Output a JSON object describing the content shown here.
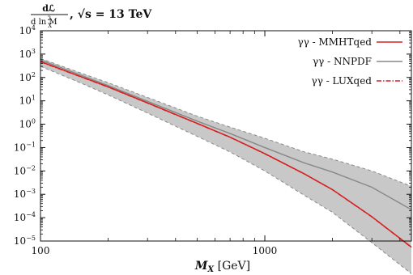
{
  "chart_data": {
    "type": "line",
    "ylabel": {
      "num": "dℒ",
      "den": "d ln M",
      "den_sub": "X",
      "den_sup": "2",
      "tail": ", √s = 13 TeV"
    },
    "xlabel": {
      "main": "M",
      "sub": "X",
      "unit": " [GeV]"
    },
    "xscale": "log",
    "yscale": "log",
    "xlim": [
      100,
      4500
    ],
    "ylim": [
      1e-05,
      10000.0
    ],
    "xticks": [
      {
        "value": 100,
        "label": "100"
      },
      {
        "value": 1000,
        "label": "1000"
      }
    ],
    "yticks": [
      {
        "value": 1e-05,
        "base": "10",
        "exp": "−5"
      },
      {
        "value": 0.0001,
        "base": "10",
        "exp": "−4"
      },
      {
        "value": 0.001,
        "base": "10",
        "exp": "−3"
      },
      {
        "value": 0.01,
        "base": "10",
        "exp": "−2"
      },
      {
        "value": 0.1,
        "base": "10",
        "exp": "−1"
      },
      {
        "value": 1,
        "base": "10",
        "exp": "0"
      },
      {
        "value": 10,
        "base": "10",
        "exp": "1"
      },
      {
        "value": 100,
        "base": "10",
        "exp": "2"
      },
      {
        "value": 1000,
        "base": "10",
        "exp": "3"
      },
      {
        "value": 10000,
        "base": "10",
        "exp": "4"
      }
    ],
    "legend_position": "top-right",
    "series": [
      {
        "name": "γγ - MMHTqed",
        "color": "#d62020",
        "style": "solid",
        "x": [
          100,
          150,
          200,
          300,
          500,
          700,
          1000,
          1500,
          2000,
          3000,
          4500
        ],
        "y": [
          480,
          112,
          40,
          8.2,
          1.08,
          0.28,
          0.055,
          0.0075,
          0.0016,
          0.00011,
          5.5e-06
        ]
      },
      {
        "name": "γγ - NNPDF",
        "color": "#888888",
        "style": "solid",
        "band": true,
        "x": [
          100,
          150,
          200,
          300,
          500,
          700,
          1000,
          1500,
          2000,
          3000,
          4500
        ],
        "y": [
          560,
          130,
          45,
          9.5,
          1.35,
          0.4,
          0.1,
          0.022,
          0.009,
          0.002,
          0.00022
        ],
        "y_upper": [
          650,
          160,
          60,
          14,
          2.2,
          0.75,
          0.25,
          0.065,
          0.032,
          0.01,
          0.0022
        ],
        "y_lower": [
          300,
          60,
          18,
          3.0,
          0.3,
          0.065,
          0.01,
          0.0009,
          0.00017,
          8.5e-06,
          4e-07
        ]
      },
      {
        "name": "γγ - LUXqed",
        "color": "#d62020",
        "style": "dashdot",
        "x": [
          100,
          150,
          200,
          300,
          500,
          700,
          1000,
          1500,
          2000,
          3000,
          4500
        ],
        "y": [
          465,
          110,
          39,
          8.0,
          1.06,
          0.275,
          0.054,
          0.0074,
          0.00158,
          0.000108,
          5.4e-06
        ]
      }
    ]
  }
}
